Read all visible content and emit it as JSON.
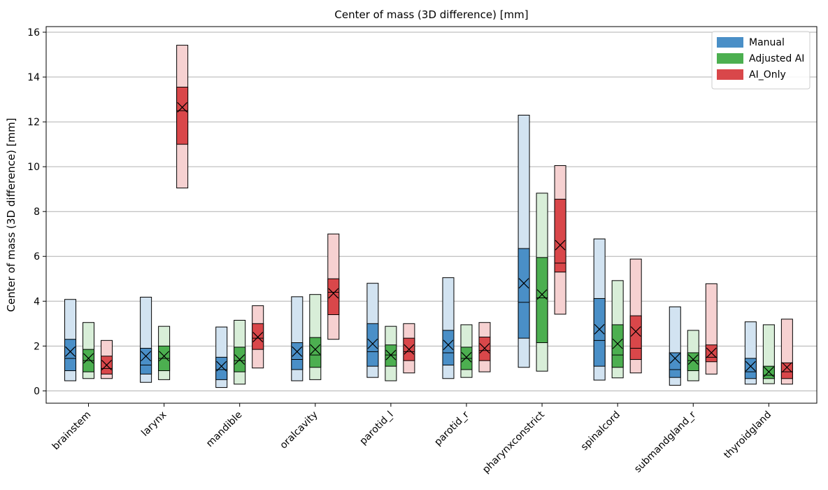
{
  "chart_data": {
    "type": "box",
    "title": "Center of mass (3D difference) [mm]",
    "xlabel": "",
    "ylabel": "Center of mass (3D difference) [mm]",
    "ylim": [
      -0.55,
      16.25
    ],
    "yticks": [
      0,
      2,
      4,
      6,
      8,
      10,
      12,
      14,
      16
    ],
    "grid": "horizontal",
    "legend_position": "top-right",
    "categories": [
      "brainstem",
      "larynx",
      "mandible",
      "oralcavity",
      "parotid_l",
      "parotid_r",
      "pharynxconstrict",
      "spinalcord",
      "submandgland_r",
      "thyroidgland"
    ],
    "series": [
      {
        "name": "Manual",
        "color": "#4a8fc7",
        "light_color": "#d2e3f1",
        "boxes": [
          {
            "min": 0.45,
            "q1": 0.9,
            "median": 1.45,
            "mean": 1.75,
            "q3": 2.3,
            "max": 4.08
          },
          {
            "min": 0.38,
            "q1": 0.75,
            "median": 1.15,
            "mean": 1.55,
            "q3": 1.9,
            "max": 4.18
          },
          {
            "min": 0.15,
            "q1": 0.5,
            "median": 0.95,
            "mean": 1.1,
            "q3": 1.5,
            "max": 2.85
          },
          {
            "min": 0.45,
            "q1": 0.95,
            "median": 1.4,
            "mean": 1.75,
            "q3": 2.15,
            "max": 4.2
          },
          {
            "min": 0.6,
            "q1": 1.1,
            "median": 1.75,
            "mean": 2.1,
            "q3": 3.0,
            "max": 4.8
          },
          {
            "min": 0.55,
            "q1": 1.15,
            "median": 1.7,
            "mean": 2.05,
            "q3": 2.7,
            "max": 5.05
          },
          {
            "min": 1.05,
            "q1": 2.35,
            "median": 3.95,
            "mean": 4.8,
            "q3": 6.35,
            "max": 12.3
          },
          {
            "min": 0.48,
            "q1": 1.1,
            "median": 2.25,
            "mean": 2.75,
            "q3": 4.12,
            "max": 6.78
          },
          {
            "min": 0.25,
            "q1": 0.6,
            "median": 0.95,
            "mean": 1.45,
            "q3": 1.7,
            "max": 3.75
          },
          {
            "min": 0.3,
            "q1": 0.55,
            "median": 0.85,
            "mean": 1.1,
            "q3": 1.45,
            "max": 3.08
          }
        ]
      },
      {
        "name": "Adjusted AI",
        "color": "#4caf50",
        "light_color": "#d8eed8",
        "boxes": [
          {
            "min": 0.55,
            "q1": 0.85,
            "median": 1.35,
            "mean": 1.45,
            "q3": 1.85,
            "max": 3.05
          },
          {
            "min": 0.5,
            "q1": 0.9,
            "median": 1.45,
            "mean": 1.55,
            "q3": 2.0,
            "max": 2.88
          },
          {
            "min": 0.3,
            "q1": 0.85,
            "median": 1.35,
            "mean": 1.4,
            "q3": 1.95,
            "max": 3.15
          },
          {
            "min": 0.5,
            "q1": 1.05,
            "median": 1.6,
            "mean": 1.85,
            "q3": 2.38,
            "max": 4.3
          },
          {
            "min": 0.45,
            "q1": 1.1,
            "median": 1.6,
            "mean": 1.6,
            "q3": 2.05,
            "max": 2.88
          },
          {
            "min": 0.6,
            "q1": 0.95,
            "median": 1.45,
            "mean": 1.5,
            "q3": 1.95,
            "max": 2.95
          },
          {
            "min": 0.88,
            "q1": 2.15,
            "median": 4.15,
            "mean": 4.3,
            "q3": 5.95,
            "max": 8.82
          },
          {
            "min": 0.58,
            "q1": 1.05,
            "median": 1.6,
            "mean": 2.1,
            "q3": 2.95,
            "max": 4.92
          },
          {
            "min": 0.45,
            "q1": 0.9,
            "median": 1.35,
            "mean": 1.4,
            "q3": 1.7,
            "max": 2.7
          },
          {
            "min": 0.32,
            "q1": 0.55,
            "median": 0.7,
            "mean": 0.85,
            "q3": 1.1,
            "max": 2.95
          }
        ]
      },
      {
        "name": "AI_Only",
        "color": "#d9474a",
        "light_color": "#f6d1d1",
        "boxes": [
          {
            "min": 0.55,
            "q1": 0.75,
            "median": 1.0,
            "mean": 1.15,
            "q3": 1.55,
            "max": 2.25
          },
          {
            "min": 9.05,
            "q1": 11.0,
            "median": 12.5,
            "mean": 12.65,
            "q3": 13.55,
            "max": 15.42
          },
          {
            "min": 1.02,
            "q1": 1.85,
            "median": 2.35,
            "mean": 2.4,
            "q3": 3.0,
            "max": 3.8
          },
          {
            "min": 2.3,
            "q1": 3.4,
            "median": 4.4,
            "mean": 4.35,
            "q3": 5.0,
            "max": 7.0
          },
          {
            "min": 0.8,
            "q1": 1.35,
            "median": 1.75,
            "mean": 1.85,
            "q3": 2.35,
            "max": 3.0
          },
          {
            "min": 0.85,
            "q1": 1.35,
            "median": 1.8,
            "mean": 1.9,
            "q3": 2.4,
            "max": 3.05
          },
          {
            "min": 3.42,
            "q1": 5.3,
            "median": 5.7,
            "mean": 6.5,
            "q3": 8.55,
            "max": 10.05
          },
          {
            "min": 0.8,
            "q1": 1.4,
            "median": 1.9,
            "mean": 2.65,
            "q3": 3.35,
            "max": 5.88
          },
          {
            "min": 0.75,
            "q1": 1.3,
            "median": 1.5,
            "mean": 1.7,
            "q3": 2.05,
            "max": 4.78
          },
          {
            "min": 0.3,
            "q1": 0.55,
            "median": 0.85,
            "mean": 1.05,
            "q3": 1.25,
            "max": 3.2
          }
        ]
      }
    ]
  }
}
